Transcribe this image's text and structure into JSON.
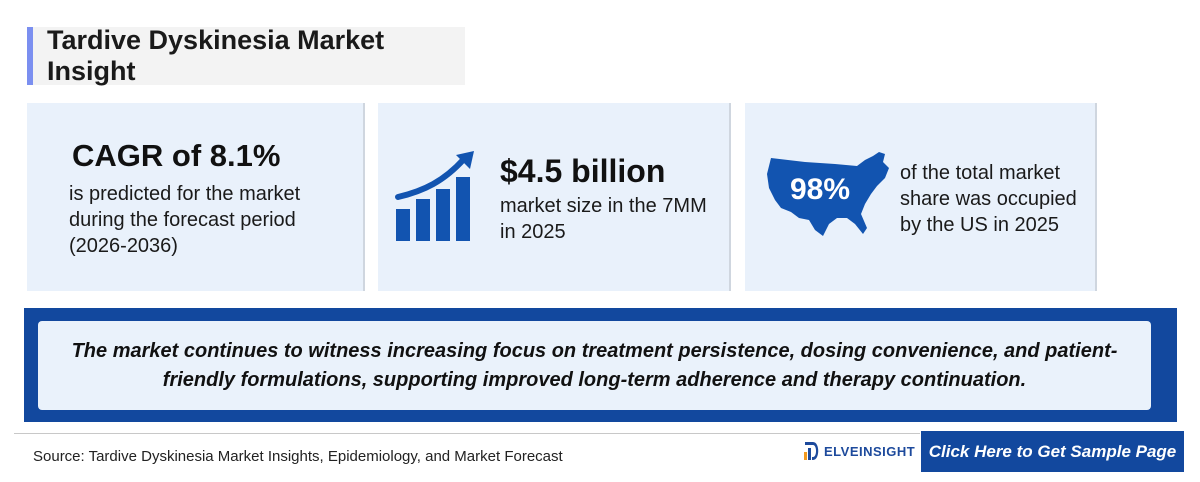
{
  "title": "Tardive Dyskinesia Market Insight",
  "cards": {
    "cagr": {
      "headline": "CAGR of 8.1%",
      "text": "is predicted for the market during the forecast period (2026-2036)"
    },
    "market_size": {
      "headline": "$4.5 billion",
      "text": "market size in the 7MM in 2025",
      "icon": "growth-chart-icon"
    },
    "us_share": {
      "value": "98%",
      "text": "of the total market share was occupied by the US in 2025",
      "icon": "us-map-icon"
    }
  },
  "banner": {
    "text": "The market continues to witness increasing focus on treatment persistence, dosing convenience, and patient-friendly formulations, supporting improved long-term adherence and therapy continuation."
  },
  "footer": {
    "source": "Source: Tardive Dyskinesia Market Insights, Epidemiology, and Market Forecast",
    "logo_text": "ELVEINSIGHT",
    "cta_label": "Click Here to Get Sample Page"
  },
  "colors": {
    "accent_blue": "#12489e",
    "card_bg": "#e9f1fb",
    "title_bar": "#7b8ff0"
  }
}
